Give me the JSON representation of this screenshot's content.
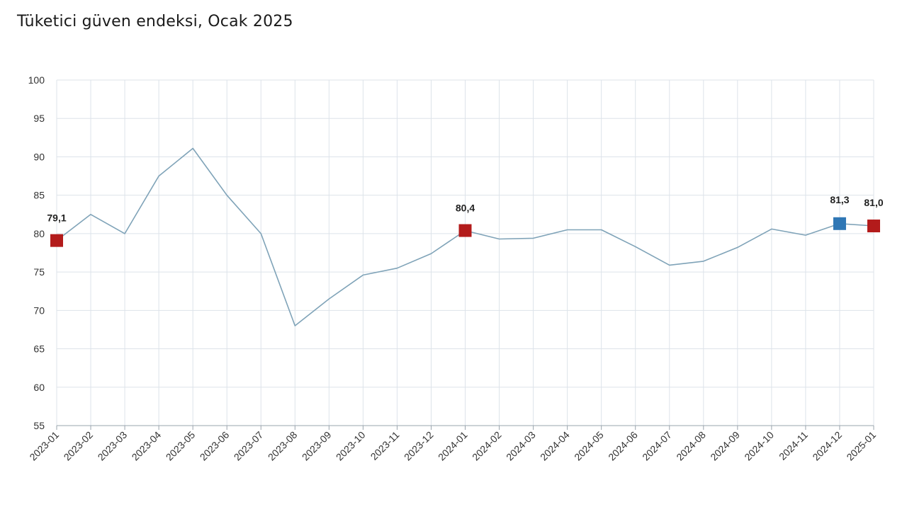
{
  "title": "Tüketici güven endeksi, Ocak 2025",
  "colors": {
    "line": "#7fa3b8",
    "grid": "#dde3ea",
    "marker_red": "#b31b1b",
    "marker_blue": "#2f77b5",
    "axis": "#9aa4ad"
  },
  "chart_data": {
    "type": "line",
    "title": "Tüketici güven endeksi, Ocak 2025",
    "xlabel": "",
    "ylabel": "",
    "ylim": [
      55,
      100
    ],
    "yticks": [
      55,
      60,
      65,
      70,
      75,
      80,
      85,
      90,
      95,
      100
    ],
    "grid": true,
    "categories": [
      "2023-01",
      "2023-02",
      "2023-03",
      "2023-04",
      "2023-05",
      "2023-06",
      "2023-07",
      "2023-08",
      "2023-09",
      "2023-10",
      "2023-11",
      "2023-12",
      "2024-01",
      "2024-02",
      "2024-03",
      "2024-04",
      "2024-05",
      "2024-06",
      "2024-07",
      "2024-08",
      "2024-09",
      "2024-10",
      "2024-11",
      "2024-12",
      "2025-01"
    ],
    "series": [
      {
        "values": [
          79.1,
          82.5,
          80.0,
          87.5,
          91.1,
          85.0,
          80.0,
          68.0,
          71.5,
          74.6,
          75.5,
          77.4,
          80.4,
          79.3,
          79.4,
          80.5,
          80.5,
          78.3,
          75.9,
          76.4,
          78.2,
          80.6,
          79.8,
          81.3,
          81.0
        ]
      }
    ],
    "annotations": [
      {
        "index": 0,
        "label": "79,1",
        "marker": "red"
      },
      {
        "index": 12,
        "label": "80,4",
        "marker": "red"
      },
      {
        "index": 23,
        "label": "81,3",
        "marker": "blue"
      },
      {
        "index": 24,
        "label": "81,0",
        "marker": "red"
      }
    ]
  }
}
